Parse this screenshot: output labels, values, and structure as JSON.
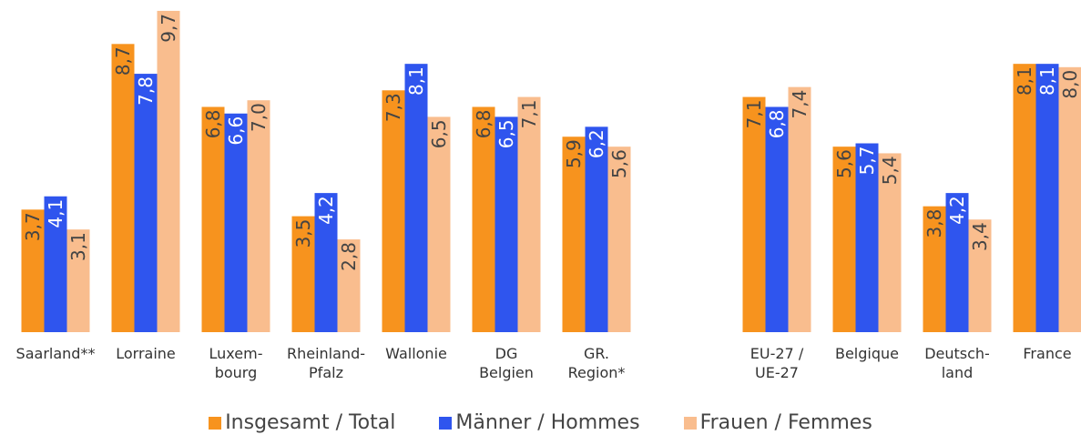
{
  "chart_data": {
    "type": "bar",
    "categories": [
      "Saarland**",
      "Lorraine",
      "Luxem-\nbourg",
      "Rheinland-\nPfalz",
      "Wallonie",
      "DG\nBelgien",
      "GR.\nRegion*",
      null,
      "EU-27 /\nUE-27",
      "Belgique",
      "Deutsch-\nland",
      "France"
    ],
    "series": [
      {
        "name": "Insgesamt / Total",
        "color": "#f7931e",
        "values": [
          3.7,
          8.7,
          6.8,
          3.5,
          7.3,
          6.8,
          5.9,
          null,
          7.1,
          5.6,
          3.8,
          8.1
        ],
        "value_labels": [
          "3,7",
          "8,7",
          "6,8",
          "3,5",
          "7,3",
          "6,8",
          "5,9",
          null,
          "7,1",
          "5,6",
          "3,8",
          "8,1"
        ]
      },
      {
        "name": "Männer / Hommes",
        "color": "#2f55ee",
        "values": [
          4.1,
          7.8,
          6.6,
          4.2,
          8.1,
          6.5,
          6.2,
          null,
          6.8,
          5.7,
          4.2,
          8.1
        ],
        "value_labels": [
          "4,1",
          "7,8",
          "6,6",
          "4,2",
          "8,1",
          "6,5",
          "6,2",
          null,
          "6,8",
          "5,7",
          "4,2",
          "8,1"
        ]
      },
      {
        "name": "Frauen / Femmes",
        "color": "#f9bd8e",
        "values": [
          3.1,
          9.7,
          7.0,
          2.8,
          6.5,
          7.1,
          5.6,
          null,
          7.4,
          5.4,
          3.4,
          8.0
        ],
        "value_labels": [
          "3,1",
          "9,7",
          "7,0",
          "2,8",
          "6,5",
          "7,1",
          "5,6",
          null,
          "7,4",
          "5,4",
          "3,4",
          "8,0"
        ]
      }
    ]
  }
}
